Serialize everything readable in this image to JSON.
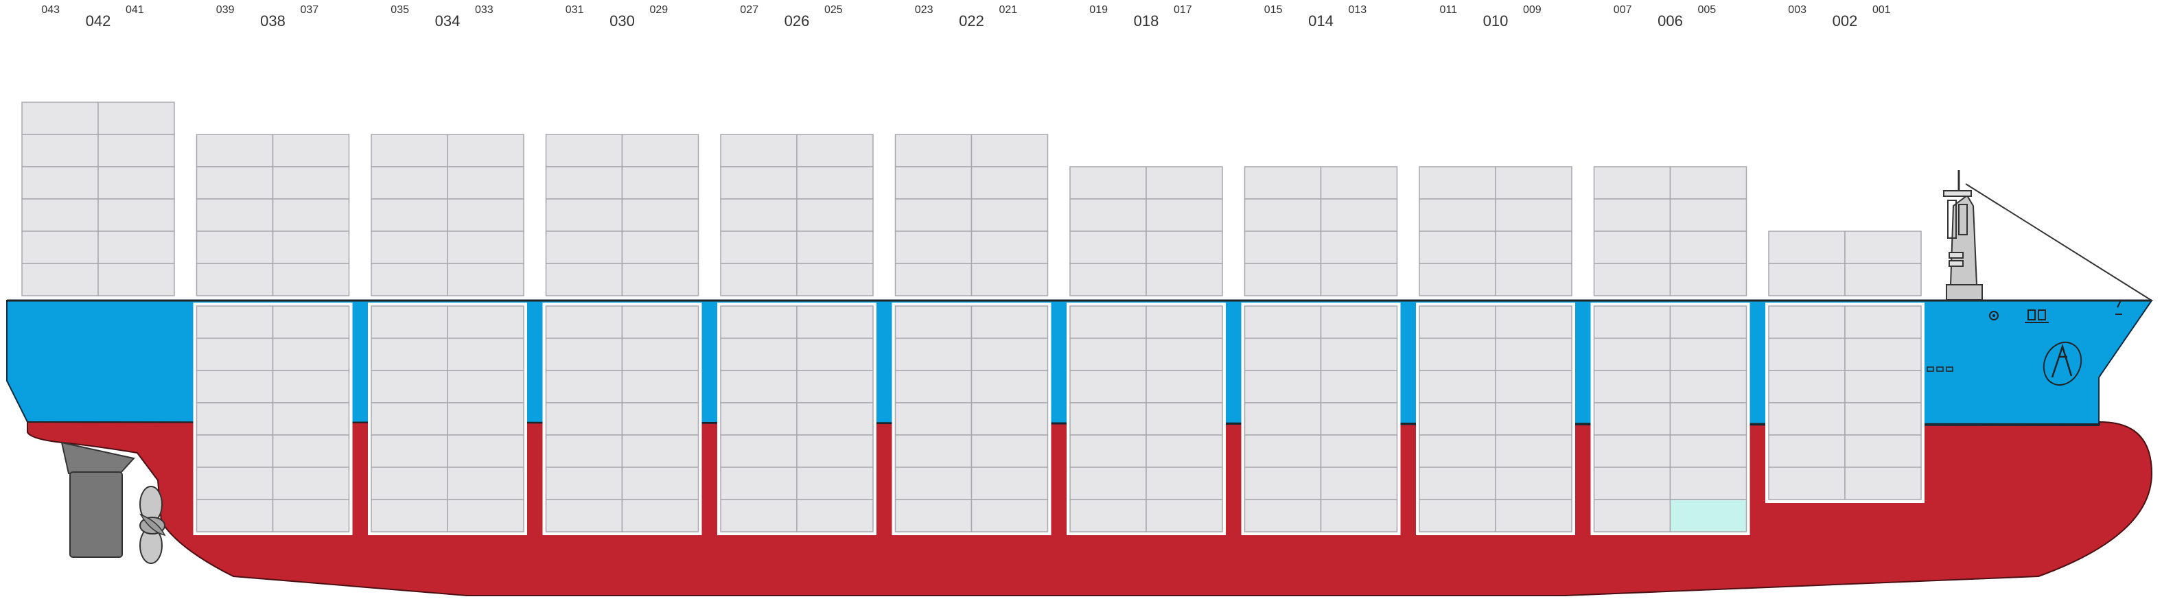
{
  "bays": [
    {
      "id": "bay-042",
      "label": "042",
      "left": "043",
      "right": "041",
      "deck_tiers": 6,
      "hold_tiers": 0
    },
    {
      "id": "bay-038",
      "label": "038",
      "left": "039",
      "right": "037",
      "deck_tiers": 5,
      "hold_tiers": 7
    },
    {
      "id": "bay-034",
      "label": "034",
      "left": "035",
      "right": "033",
      "deck_tiers": 5,
      "hold_tiers": 7
    },
    {
      "id": "bay-030",
      "label": "030",
      "left": "031",
      "right": "029",
      "deck_tiers": 5,
      "hold_tiers": 7
    },
    {
      "id": "bay-026",
      "label": "026",
      "left": "027",
      "right": "025",
      "deck_tiers": 5,
      "hold_tiers": 7
    },
    {
      "id": "bay-022",
      "label": "022",
      "left": "023",
      "right": "021",
      "deck_tiers": 5,
      "hold_tiers": 7
    },
    {
      "id": "bay-018",
      "label": "018",
      "left": "019",
      "right": "017",
      "deck_tiers": 4,
      "hold_tiers": 7
    },
    {
      "id": "bay-014",
      "label": "014",
      "left": "015",
      "right": "013",
      "deck_tiers": 4,
      "hold_tiers": 7
    },
    {
      "id": "bay-010",
      "label": "010",
      "left": "011",
      "right": "009",
      "deck_tiers": 4,
      "hold_tiers": 7
    },
    {
      "id": "bay-006",
      "label": "006",
      "left": "007",
      "right": "005",
      "deck_tiers": 4,
      "hold_tiers": 7
    },
    {
      "id": "bay-002",
      "label": "002",
      "left": "003",
      "right": "001",
      "deck_tiers": 2,
      "hold_tiers": 6
    }
  ],
  "highlight": {
    "bay": "006",
    "area": "hold",
    "column": "right",
    "tier": 7,
    "color": "#c6f3ec"
  },
  "colors": {
    "hull_upper": "#0a9fde",
    "hull_lower": "#c1242e",
    "container": "#e6e6e9",
    "container_line": "#a7a7ad",
    "hold_frame": "#ffffff",
    "rudder": "#777777"
  },
  "icons": [
    "propeller-icon",
    "rudder-icon",
    "anchor-icon",
    "mast-icon",
    "bow-bulb-icon"
  ]
}
